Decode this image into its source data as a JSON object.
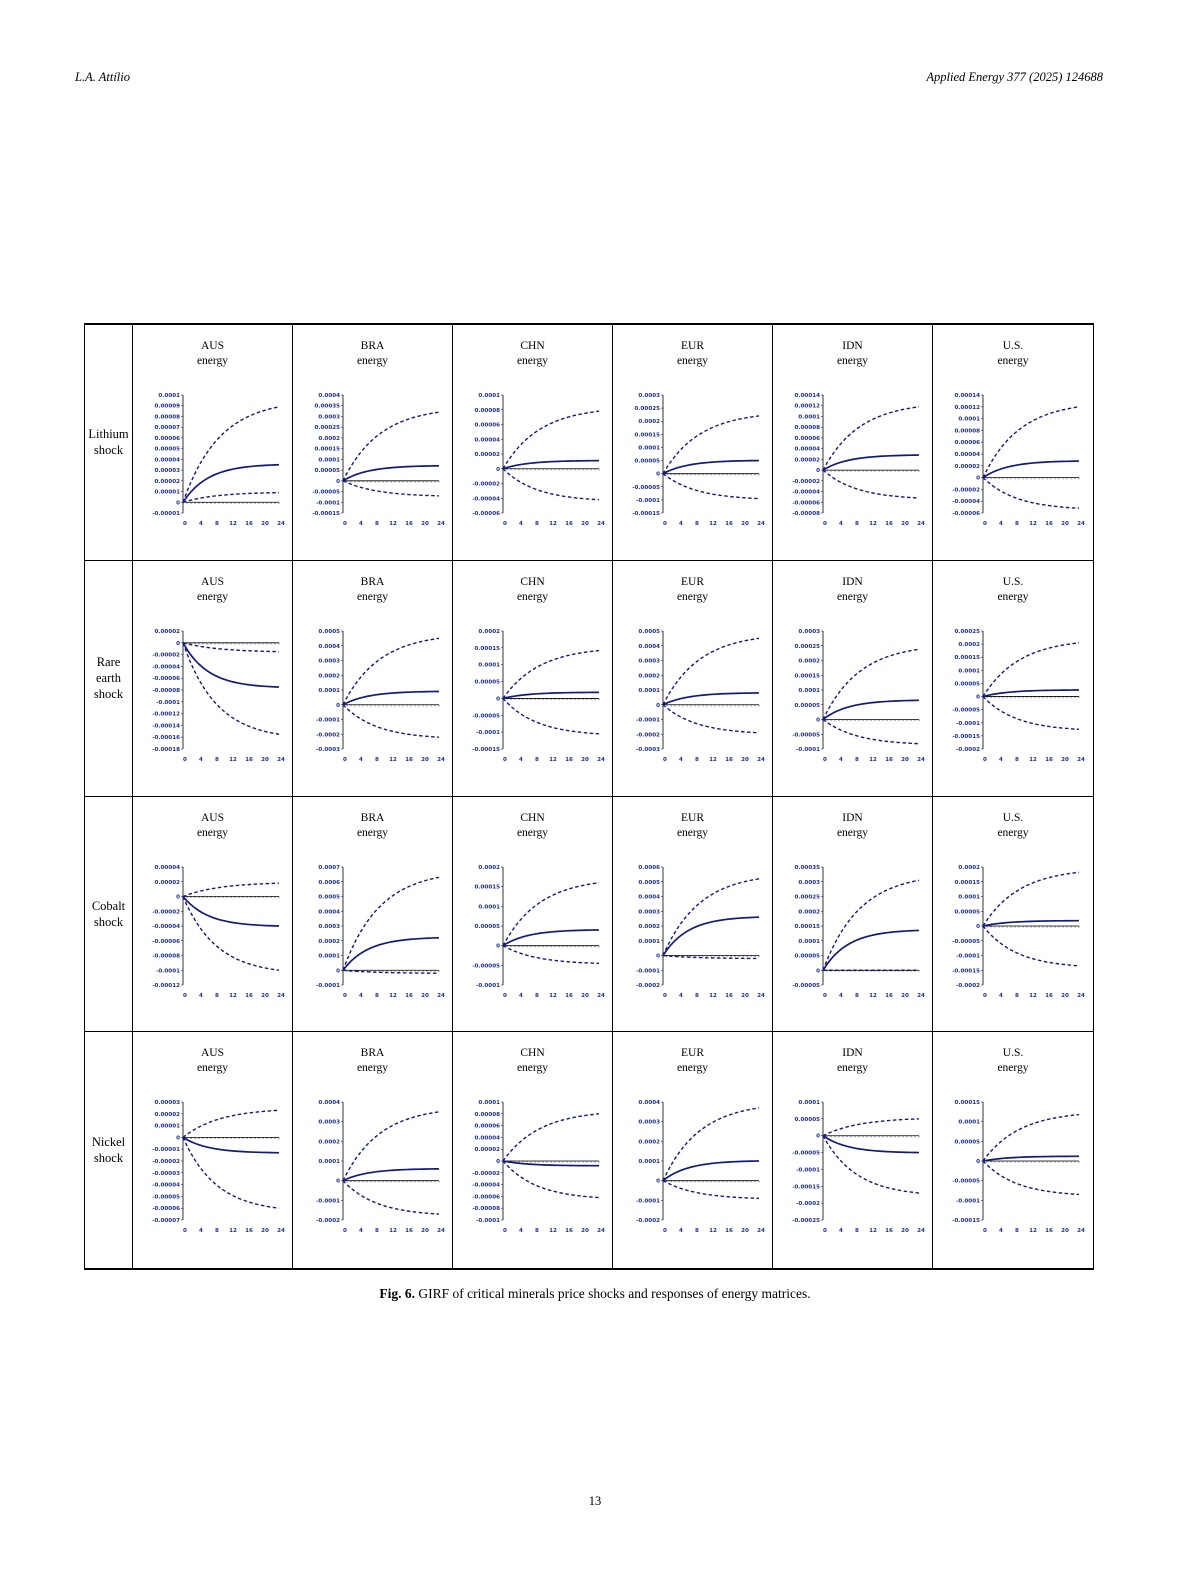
{
  "header": {
    "author": "L.A. Attílio",
    "journal": "Applied Energy 377 (2025) 124688"
  },
  "figure": {
    "caption_label": "Fig. 6.",
    "caption_text": "GIRF of critical minerals price shocks and responses of energy matrices.",
    "row_labels": [
      "Lithium\nshock",
      "Rare\nearth\nshock",
      "Cobalt\nshock",
      "Nickel\nshock"
    ],
    "column_titles": [
      {
        "country": "AUS",
        "variable": "energy"
      },
      {
        "country": "BRA",
        "variable": "energy"
      },
      {
        "country": "CHN",
        "variable": "energy"
      },
      {
        "country": "EUR",
        "variable": "energy"
      },
      {
        "country": "IDN",
        "variable": "energy"
      },
      {
        "country": "U.S.",
        "variable": "energy"
      }
    ],
    "x_ticks": [
      "0",
      "4",
      "8",
      "12",
      "16",
      "20",
      "24"
    ]
  },
  "chart_data": [
    {
      "type": "line",
      "shock": "Lithium",
      "country": "AUS",
      "ylim": [
        -1e-05,
        0.0001
      ],
      "y_ticks": [
        "0.0001",
        "0.00009",
        "0.00008",
        "0.00007",
        "0.00006",
        "0.00005",
        "0.00004",
        "0.00003",
        "0.00002",
        "0.00001",
        "0",
        "-0.00001"
      ],
      "x": [
        0,
        24
      ],
      "response": [
        0,
        3.5e-05
      ],
      "upper": [
        0,
        8.9e-05
      ],
      "lower": [
        0,
        9e-06
      ]
    },
    {
      "type": "line",
      "shock": "Lithium",
      "country": "BRA",
      "ylim": [
        -0.00015,
        0.0004
      ],
      "y_ticks": [
        "0.0004",
        "0.00035",
        "0.0003",
        "0.00025",
        "0.0002",
        "0.00015",
        "0.0001",
        "0.00005",
        "0",
        "-0.00005",
        "-0.0001",
        "-0.00015"
      ],
      "x": [
        0,
        24
      ],
      "response": [
        0,
        7e-05
      ],
      "upper": [
        0,
        0.00032
      ],
      "lower": [
        0,
        -7e-05
      ]
    },
    {
      "type": "line",
      "shock": "Lithium",
      "country": "CHN",
      "ylim": [
        -6e-05,
        0.0001
      ],
      "y_ticks": [
        "0.0001",
        "0.00008",
        "0.00006",
        "0.00004",
        "0.00002",
        "0",
        "-0.00002",
        "-0.00004",
        "-0.00006"
      ],
      "x": [
        0,
        24
      ],
      "response": [
        0,
        1.1e-05
      ],
      "upper": [
        0,
        7.8e-05
      ],
      "lower": [
        0,
        -4.2e-05
      ]
    },
    {
      "type": "line",
      "shock": "Lithium",
      "country": "EUR",
      "ylim": [
        -0.00015,
        0.0003
      ],
      "y_ticks": [
        "0.0003",
        "0.00025",
        "0.0002",
        "0.00015",
        "0.0001",
        "0.00005",
        "0",
        "-0.00005",
        "-0.0001",
        "-0.00015"
      ],
      "x": [
        0,
        24
      ],
      "response": [
        0,
        5e-05
      ],
      "upper": [
        0,
        0.00022
      ],
      "lower": [
        0,
        -9.5e-05
      ]
    },
    {
      "type": "line",
      "shock": "Lithium",
      "country": "IDN",
      "ylim": [
        -8e-05,
        0.00014
      ],
      "y_ticks": [
        "0.00014",
        "0.00012",
        "0.0001",
        "0.00008",
        "0.00006",
        "0.00004",
        "0.00002",
        "0",
        "-0.00002",
        "-0.00004",
        "-0.00006",
        "-0.00008"
      ],
      "x": [
        0,
        24
      ],
      "response": [
        0,
        2.8e-05
      ],
      "upper": [
        0,
        0.000118
      ],
      "lower": [
        0,
        -5.2e-05
      ]
    },
    {
      "type": "line",
      "shock": "Lithium",
      "country": "U.S.",
      "ylim": [
        -6e-05,
        0.00014
      ],
      "y_ticks": [
        "0.00014",
        "0.00012",
        "0.0001",
        "0.00008",
        "0.00006",
        "0.00004",
        "0.00002",
        "0",
        "-0.00002",
        "-0.00004",
        "-0.00006"
      ],
      "x": [
        0,
        24
      ],
      "response": [
        0,
        2.8e-05
      ],
      "upper": [
        0,
        0.00012
      ],
      "lower": [
        0,
        -5.2e-05
      ]
    },
    {
      "type": "line",
      "shock": "Rare earth",
      "country": "AUS",
      "ylim": [
        -0.00018,
        2e-05
      ],
      "y_ticks": [
        "0.00002",
        "0",
        "-0.00002",
        "-0.00004",
        "-0.00006",
        "-0.00008",
        "-0.0001",
        "-0.00012",
        "-0.00014",
        "-0.00016",
        "-0.00018"
      ],
      "x": [
        0,
        24
      ],
      "response": [
        0,
        -7.5e-05
      ],
      "upper": [
        0,
        -1.5e-05
      ],
      "lower": [
        0,
        -0.000155
      ]
    },
    {
      "type": "line",
      "shock": "Rare earth",
      "country": "BRA",
      "ylim": [
        -0.0003,
        0.0005
      ],
      "y_ticks": [
        "0.0005",
        "0.0004",
        "0.0003",
        "0.0002",
        "0.0001",
        "0",
        "-0.0001",
        "-0.0002",
        "-0.0003"
      ],
      "x": [
        0,
        24
      ],
      "response": [
        0,
        9e-05
      ],
      "upper": [
        0,
        0.00045
      ],
      "lower": [
        0,
        -0.00022
      ]
    },
    {
      "type": "line",
      "shock": "Rare earth",
      "country": "CHN",
      "ylim": [
        -0.00015,
        0.0002
      ],
      "y_ticks": [
        "0.0002",
        "0.00015",
        "0.0001",
        "0.00005",
        "0",
        "-0.00005",
        "-0.0001",
        "-0.00015"
      ],
      "x": [
        0,
        24
      ],
      "response": [
        0,
        1.8e-05
      ],
      "upper": [
        0,
        0.000142
      ],
      "lower": [
        0,
        -0.000105
      ]
    },
    {
      "type": "line",
      "shock": "Rare earth",
      "country": "EUR",
      "ylim": [
        -0.0003,
        0.0005
      ],
      "y_ticks": [
        "0.0005",
        "0.0004",
        "0.0003",
        "0.0002",
        "0.0001",
        "0",
        "-0.0001",
        "-0.0002",
        "-0.0003"
      ],
      "x": [
        0,
        24
      ],
      "response": [
        0,
        8e-05
      ],
      "upper": [
        0,
        0.00045
      ],
      "lower": [
        0,
        -0.00019
      ]
    },
    {
      "type": "line",
      "shock": "Rare earth",
      "country": "IDN",
      "ylim": [
        -0.0001,
        0.0003
      ],
      "y_ticks": [
        "0.0003",
        "0.00025",
        "0.0002",
        "0.00015",
        "0.0001",
        "0.00005",
        "0",
        "-0.00005",
        "-0.0001"
      ],
      "x": [
        0,
        24
      ],
      "response": [
        0,
        6.5e-05
      ],
      "upper": [
        0,
        0.000238
      ],
      "lower": [
        0,
        -8.2e-05
      ]
    },
    {
      "type": "line",
      "shock": "Rare earth",
      "country": "U.S.",
      "ylim": [
        -0.0002,
        0.00025
      ],
      "y_ticks": [
        "0.00025",
        "0.0002",
        "0.00015",
        "0.0001",
        "0.00005",
        "0",
        "-0.00005",
        "-0.0001",
        "-0.00015",
        "-0.0002"
      ],
      "x": [
        0,
        24
      ],
      "response": [
        0,
        2.5e-05
      ],
      "upper": [
        0,
        0.000205
      ],
      "lower": [
        0,
        -0.000125
      ]
    },
    {
      "type": "line",
      "shock": "Cobalt",
      "country": "AUS",
      "ylim": [
        -0.00012,
        4e-05
      ],
      "y_ticks": [
        "0.00004",
        "0.00002",
        "0",
        "-0.00002",
        "-0.00004",
        "-0.00006",
        "-0.00008",
        "-0.0001",
        "-0.00012"
      ],
      "x": [
        0,
        24
      ],
      "response": [
        0,
        -4e-05
      ],
      "upper": [
        0,
        1.8e-05
      ],
      "lower": [
        0,
        -0.0001
      ]
    },
    {
      "type": "line",
      "shock": "Cobalt",
      "country": "BRA",
      "ylim": [
        -0.0001,
        0.0007
      ],
      "y_ticks": [
        "0.0007",
        "0.0006",
        "0.0005",
        "0.0004",
        "0.0003",
        "0.0002",
        "0.0001",
        "0",
        "-0.0001"
      ],
      "x": [
        0,
        24
      ],
      "response": [
        0,
        0.00022
      ],
      "upper": [
        0,
        0.00063
      ],
      "lower": [
        0,
        -2e-05
      ]
    },
    {
      "type": "line",
      "shock": "Cobalt",
      "country": "CHN",
      "ylim": [
        -0.0001,
        0.0002
      ],
      "y_ticks": [
        "0.0002",
        "0.00015",
        "0.0001",
        "0.00005",
        "0",
        "-0.00005",
        "-0.0001"
      ],
      "x": [
        0,
        24
      ],
      "response": [
        0,
        4e-05
      ],
      "upper": [
        0,
        0.00016
      ],
      "lower": [
        0,
        -4.5e-05
      ]
    },
    {
      "type": "line",
      "shock": "Cobalt",
      "country": "EUR",
      "ylim": [
        -0.0002,
        0.0006
      ],
      "y_ticks": [
        "0.0006",
        "0.0005",
        "0.0004",
        "0.0003",
        "0.0002",
        "0.0001",
        "0",
        "-0.0001",
        "-0.0002"
      ],
      "x": [
        0,
        24
      ],
      "response": [
        0,
        0.00026
      ],
      "upper": [
        0,
        0.00052
      ],
      "lower": [
        0,
        -2e-05
      ]
    },
    {
      "type": "line",
      "shock": "Cobalt",
      "country": "IDN",
      "ylim": [
        -5e-05,
        0.00035
      ],
      "y_ticks": [
        "0.00035",
        "0.0003",
        "0.00025",
        "0.0002",
        "0.00015",
        "0.0001",
        "0.00005",
        "0",
        "-0.00005"
      ],
      "x": [
        0,
        24
      ],
      "response": [
        0,
        0.000135
      ],
      "upper": [
        0,
        0.000305
      ],
      "lower": [
        0,
        0.0
      ]
    },
    {
      "type": "line",
      "shock": "Cobalt",
      "country": "U.S.",
      "ylim": [
        -0.0002,
        0.0002
      ],
      "y_ticks": [
        "0.0002",
        "0.00015",
        "0.0001",
        "0.00005",
        "0",
        "-0.00005",
        "-0.0001",
        "-0.00015",
        "-0.0002"
      ],
      "x": [
        0,
        24
      ],
      "response": [
        0,
        1.8e-05
      ],
      "upper": [
        0,
        0.000182
      ],
      "lower": [
        0,
        -0.000135
      ]
    },
    {
      "type": "line",
      "shock": "Nickel",
      "country": "AUS",
      "ylim": [
        -7e-05,
        3e-05
      ],
      "y_ticks": [
        "0.00003",
        "0.00002",
        "0.00001",
        "0",
        "-0.00001",
        "-0.00002",
        "-0.00003",
        "-0.00004",
        "-0.00005",
        "-0.00006",
        "-0.00007"
      ],
      "x": [
        0,
        24
      ],
      "response": [
        0,
        -1.3e-05
      ],
      "upper": [
        0,
        2.3e-05
      ],
      "lower": [
        0,
        -6e-05
      ]
    },
    {
      "type": "line",
      "shock": "Nickel",
      "country": "BRA",
      "ylim": [
        -0.0002,
        0.0004
      ],
      "y_ticks": [
        "0.0004",
        "0.0003",
        "0.0002",
        "0.0001",
        "0",
        "-0.0001",
        "-0.0002"
      ],
      "x": [
        0,
        24
      ],
      "response": [
        0,
        6e-05
      ],
      "upper": [
        0,
        0.00035
      ],
      "lower": [
        0,
        -0.00017
      ]
    },
    {
      "type": "line",
      "shock": "Nickel",
      "country": "CHN",
      "ylim": [
        -0.0001,
        0.0001
      ],
      "y_ticks": [
        "0.0001",
        "0.00008",
        "0.00006",
        "0.00004",
        "0.00002",
        "0",
        "-0.00002",
        "-0.00004",
        "-0.00006",
        "-0.00008",
        "-0.0001"
      ],
      "x": [
        0,
        24
      ],
      "response": [
        0,
        -8e-06
      ],
      "upper": [
        0,
        8e-05
      ],
      "lower": [
        0,
        -6.2e-05
      ]
    },
    {
      "type": "line",
      "shock": "Nickel",
      "country": "EUR",
      "ylim": [
        -0.0002,
        0.0004
      ],
      "y_ticks": [
        "0.0004",
        "0.0003",
        "0.0002",
        "0.0001",
        "0",
        "-0.0001",
        "-0.0002"
      ],
      "x": [
        0,
        24
      ],
      "response": [
        0,
        0.0001
      ],
      "upper": [
        0,
        0.00037
      ],
      "lower": [
        0,
        -9e-05
      ]
    },
    {
      "type": "line",
      "shock": "Nickel",
      "country": "IDN",
      "ylim": [
        -0.00025,
        0.0001
      ],
      "y_ticks": [
        "0.0001",
        "0.00005",
        "0",
        "-0.00005",
        "-0.0001",
        "-0.00015",
        "-0.0002",
        "-0.00025"
      ],
      "x": [
        0,
        24
      ],
      "response": [
        0,
        -5e-05
      ],
      "upper": [
        0,
        5e-05
      ],
      "lower": [
        0,
        -0.00017
      ]
    },
    {
      "type": "line",
      "shock": "Nickel",
      "country": "U.S.",
      "ylim": [
        -0.00015,
        0.00015
      ],
      "y_ticks": [
        "0.00015",
        "0.0001",
        "0.00005",
        "0",
        "-0.00005",
        "-0.0001",
        "-0.00015"
      ],
      "x": [
        0,
        24
      ],
      "response": [
        0,
        1.2e-05
      ],
      "upper": [
        0,
        0.000118
      ],
      "lower": [
        0,
        -8.5e-05
      ]
    }
  ]
}
